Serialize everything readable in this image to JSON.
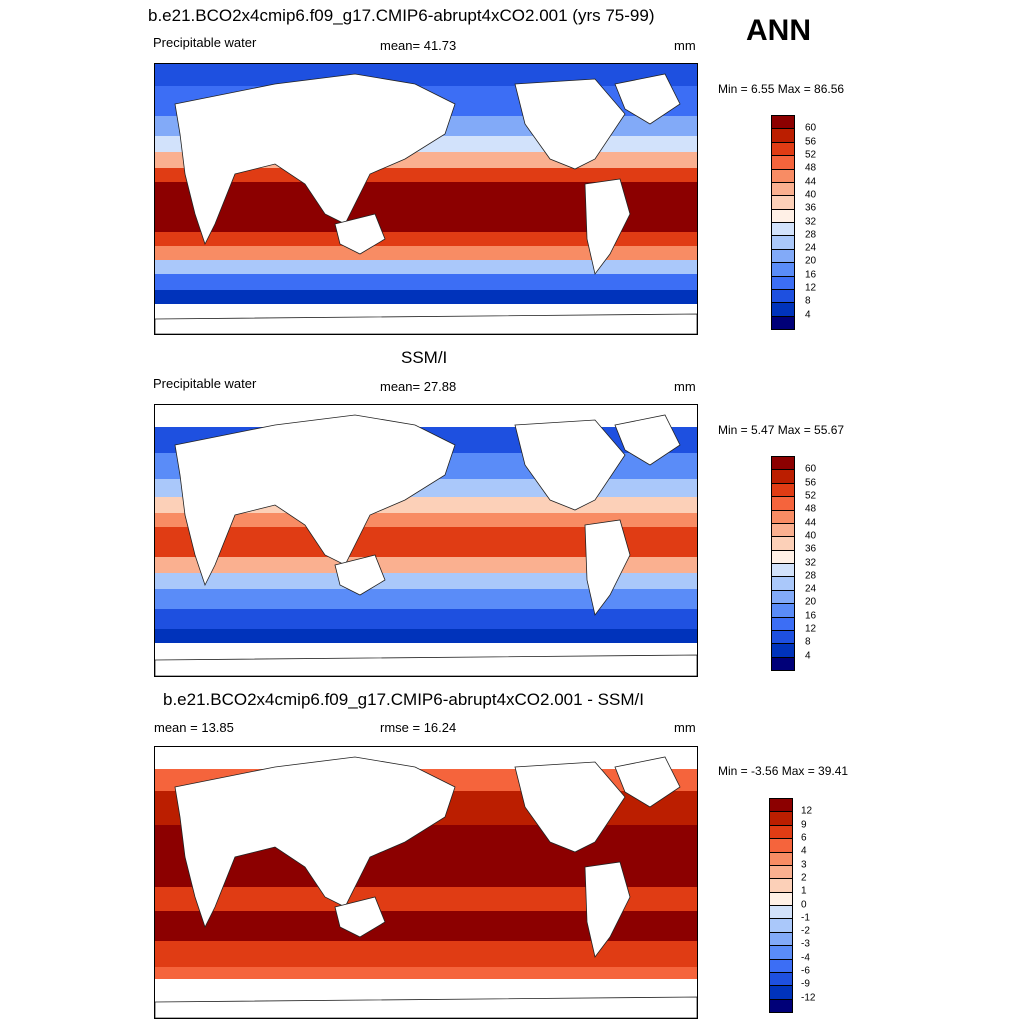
{
  "season": "ANN",
  "colors": {
    "abs_scale": [
      "#000078",
      "#0033bb",
      "#1e50e0",
      "#3c6ef5",
      "#5a8cf8",
      "#82aaf8",
      "#aac8fa",
      "#d2e2fb",
      "#fff0e6",
      "#fcd0b8",
      "#fab090",
      "#f88c64",
      "#f5643c",
      "#e03c14",
      "#bb1e00",
      "#8c0000"
    ],
    "diff_scale": [
      "#000078",
      "#0033bb",
      "#1e50e0",
      "#3c6ef5",
      "#5a8cf8",
      "#82aaf8",
      "#aac8fa",
      "#d2e2fb",
      "#fff0e6",
      "#fcd0b8",
      "#fab090",
      "#f88c64",
      "#f5643c",
      "#e03c14",
      "#bb1e00",
      "#8c0000"
    ]
  },
  "panels": [
    {
      "title": "b.e21.BCO2x4cmip6.f09_g17.CMIP6-abrupt4xCO2.001 (yrs 75-99)",
      "left_label": "Precipitable water",
      "center_label": "mean=  41.73",
      "right_label": "mm",
      "minmax": "Min =   6.55 Max =  86.56",
      "scale": "abs",
      "colorbar_labels": [
        "60",
        "56",
        "52",
        "48",
        "44",
        "40",
        "36",
        "32",
        "28",
        "24",
        "20",
        "16",
        "12",
        "8",
        "4"
      ]
    },
    {
      "title": "SSM/I",
      "left_label": "Precipitable water",
      "center_label": "mean=  27.88",
      "right_label": "mm",
      "minmax": "Min =   5.47 Max =  55.67",
      "scale": "abs",
      "colorbar_labels": [
        "60",
        "56",
        "52",
        "48",
        "44",
        "40",
        "36",
        "32",
        "28",
        "24",
        "20",
        "16",
        "12",
        "8",
        "4"
      ]
    },
    {
      "title": "b.e21.BCO2x4cmip6.f09_g17.CMIP6-abrupt4xCO2.001 - SSM/I",
      "left_label": "mean =  13.85",
      "center_label": "rmse =  16.24",
      "right_label": "mm",
      "minmax": "Min =  -3.56 Max =  39.41",
      "scale": "diff",
      "colorbar_labels": [
        "12",
        "9",
        "6",
        "4",
        "3",
        "2",
        "1",
        "0",
        "-1",
        "-2",
        "-3",
        "-4",
        "-6",
        "-9",
        "-12"
      ]
    }
  ]
}
